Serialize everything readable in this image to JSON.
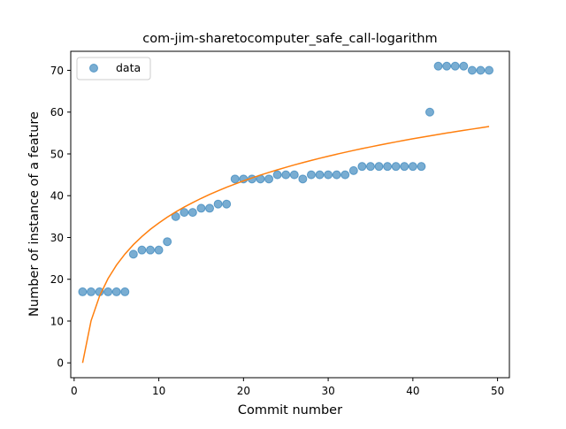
{
  "chart_data": {
    "type": "scatter",
    "title": "com-jim-sharetocomputer_safe_call-logarithm",
    "xlabel": "Commit number",
    "ylabel": "Number of instance of a feature",
    "xlim": [
      -0.4,
      51.4
    ],
    "ylim": [
      -3.55,
      74.55
    ],
    "xticks": [
      0,
      10,
      20,
      30,
      40,
      50
    ],
    "yticks": [
      0,
      10,
      20,
      30,
      40,
      50,
      60,
      70
    ],
    "grid": false,
    "legend": {
      "position": "top-left",
      "entries": [
        "data"
      ]
    },
    "series": [
      {
        "name": "data",
        "kind": "scatter",
        "color": "#1f77b4",
        "x": [
          1,
          2,
          3,
          4,
          5,
          6,
          7,
          8,
          9,
          10,
          11,
          12,
          13,
          14,
          15,
          16,
          17,
          18,
          19,
          20,
          21,
          22,
          23,
          24,
          25,
          26,
          27,
          28,
          29,
          30,
          31,
          32,
          33,
          34,
          35,
          36,
          37,
          38,
          39,
          40,
          41,
          42,
          43,
          44,
          45,
          46,
          47,
          48,
          49
        ],
        "y": [
          17,
          17,
          17,
          17,
          17,
          17,
          26,
          27,
          27,
          27,
          29,
          35,
          36,
          36,
          37,
          37,
          38,
          38,
          44,
          44,
          44,
          44,
          44,
          45,
          45,
          45,
          44,
          45,
          45,
          45,
          45,
          45,
          46,
          47,
          47,
          47,
          47,
          47,
          47,
          47,
          47,
          60,
          71,
          71,
          71,
          71,
          70,
          70,
          70
        ]
      },
      {
        "kind": "line",
        "color": "#ff7f0e",
        "x": [
          1,
          2,
          3,
          4,
          5,
          6,
          7,
          8,
          9,
          10,
          11,
          12,
          13,
          14,
          15,
          16,
          17,
          18,
          19,
          20,
          21,
          22,
          23,
          24,
          25,
          26,
          27,
          28,
          29,
          30,
          31,
          32,
          33,
          34,
          35,
          36,
          37,
          38,
          39,
          40,
          41,
          42,
          43,
          44,
          45,
          46,
          47,
          48,
          49
        ],
        "y": [
          0,
          10.07,
          15.97,
          20.15,
          23.39,
          26.04,
          28.29,
          30.23,
          31.95,
          33.47,
          34.86,
          36.12,
          37.28,
          38.35,
          39.36,
          40.3,
          41.18,
          42.01,
          42.79,
          43.54,
          44.25,
          44.93,
          45.57,
          46.19,
          46.79,
          47.36,
          47.91,
          48.44,
          48.95,
          49.44,
          49.92,
          50.38,
          50.83,
          51.26,
          51.68,
          52.09,
          52.49,
          52.87,
          53.25,
          53.62,
          53.97,
          54.32,
          54.66,
          54.99,
          55.32,
          55.64,
          55.94,
          56.25,
          56.55
        ]
      }
    ]
  }
}
